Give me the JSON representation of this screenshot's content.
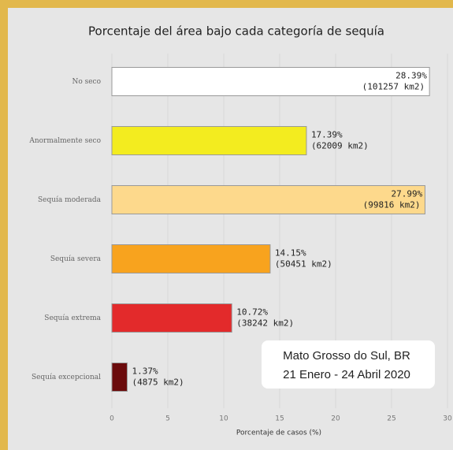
{
  "chart_data": {
    "type": "barh",
    "title": "Porcentaje del área bajo cada categoría de sequía",
    "categories": [
      "No seco",
      "Anormalmente seco",
      "Sequía moderada",
      "Sequía severa",
      "Sequía extrema",
      "Sequía excepcional"
    ],
    "values": [
      28.39,
      17.39,
      27.99,
      14.15,
      10.72,
      1.37
    ],
    "value_labels": [
      "28.39%",
      "17.39%",
      "27.99%",
      "14.15%",
      "10.72%",
      "1.37%"
    ],
    "area_labels": [
      "(101257 km2)",
      "(62009 km2)",
      "(99816 km2)",
      "(50451 km2)",
      "(38242 km2)",
      "(4875 km2)"
    ],
    "colors": [
      "#ffffff",
      "#f3ec1f",
      "#fdd98c",
      "#f8a31e",
      "#e32a2b",
      "#6b0b0c"
    ],
    "xlim": [
      0,
      30
    ],
    "xticks": [
      0,
      5,
      10,
      15,
      20,
      25,
      30
    ],
    "xlabel": "Porcentaje de casos (%)",
    "grid": true,
    "annotation": [
      "Mato Grosso do Sul, BR",
      "21 Enero  - 24 Abril 2020"
    ]
  }
}
